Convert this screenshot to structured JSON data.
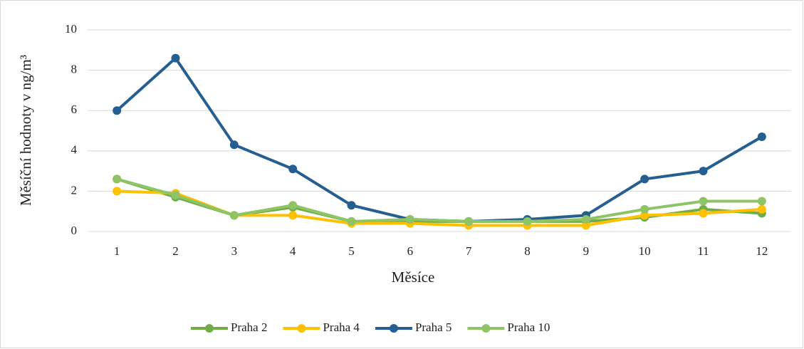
{
  "chart_data": {
    "type": "line",
    "x_label": "Měsíce",
    "y_label": "Měsíční hodnoty v ng/m³",
    "categories": [
      "1",
      "2",
      "3",
      "4",
      "5",
      "6",
      "7",
      "8",
      "9",
      "10",
      "11",
      "12"
    ],
    "series": [
      {
        "name": "Praha 2",
        "color": "#70ad47",
        "values": [
          2.6,
          1.7,
          0.8,
          1.2,
          0.5,
          0.5,
          0.5,
          0.5,
          0.5,
          0.7,
          1.1,
          0.9
        ]
      },
      {
        "name": "Praha 4",
        "color": "#ffc000",
        "values": [
          2.0,
          1.9,
          0.8,
          0.8,
          0.4,
          0.4,
          0.3,
          0.3,
          0.3,
          0.8,
          0.9,
          1.1
        ]
      },
      {
        "name": "Praha 5",
        "color": "#255e91",
        "values": [
          6.0,
          8.6,
          4.3,
          3.1,
          1.3,
          0.6,
          0.5,
          0.6,
          0.8,
          2.6,
          3.0,
          4.7
        ]
      },
      {
        "name": "Praha 10",
        "color": "#8fc466",
        "values": [
          2.6,
          1.8,
          0.8,
          1.3,
          0.5,
          0.6,
          0.5,
          0.5,
          0.6,
          1.1,
          1.5,
          1.5
        ]
      }
    ],
    "ylim": [
      0,
      10
    ],
    "yticks": [
      0,
      2,
      4,
      6,
      8,
      10
    ],
    "grid": true,
    "legend": "bottom"
  }
}
